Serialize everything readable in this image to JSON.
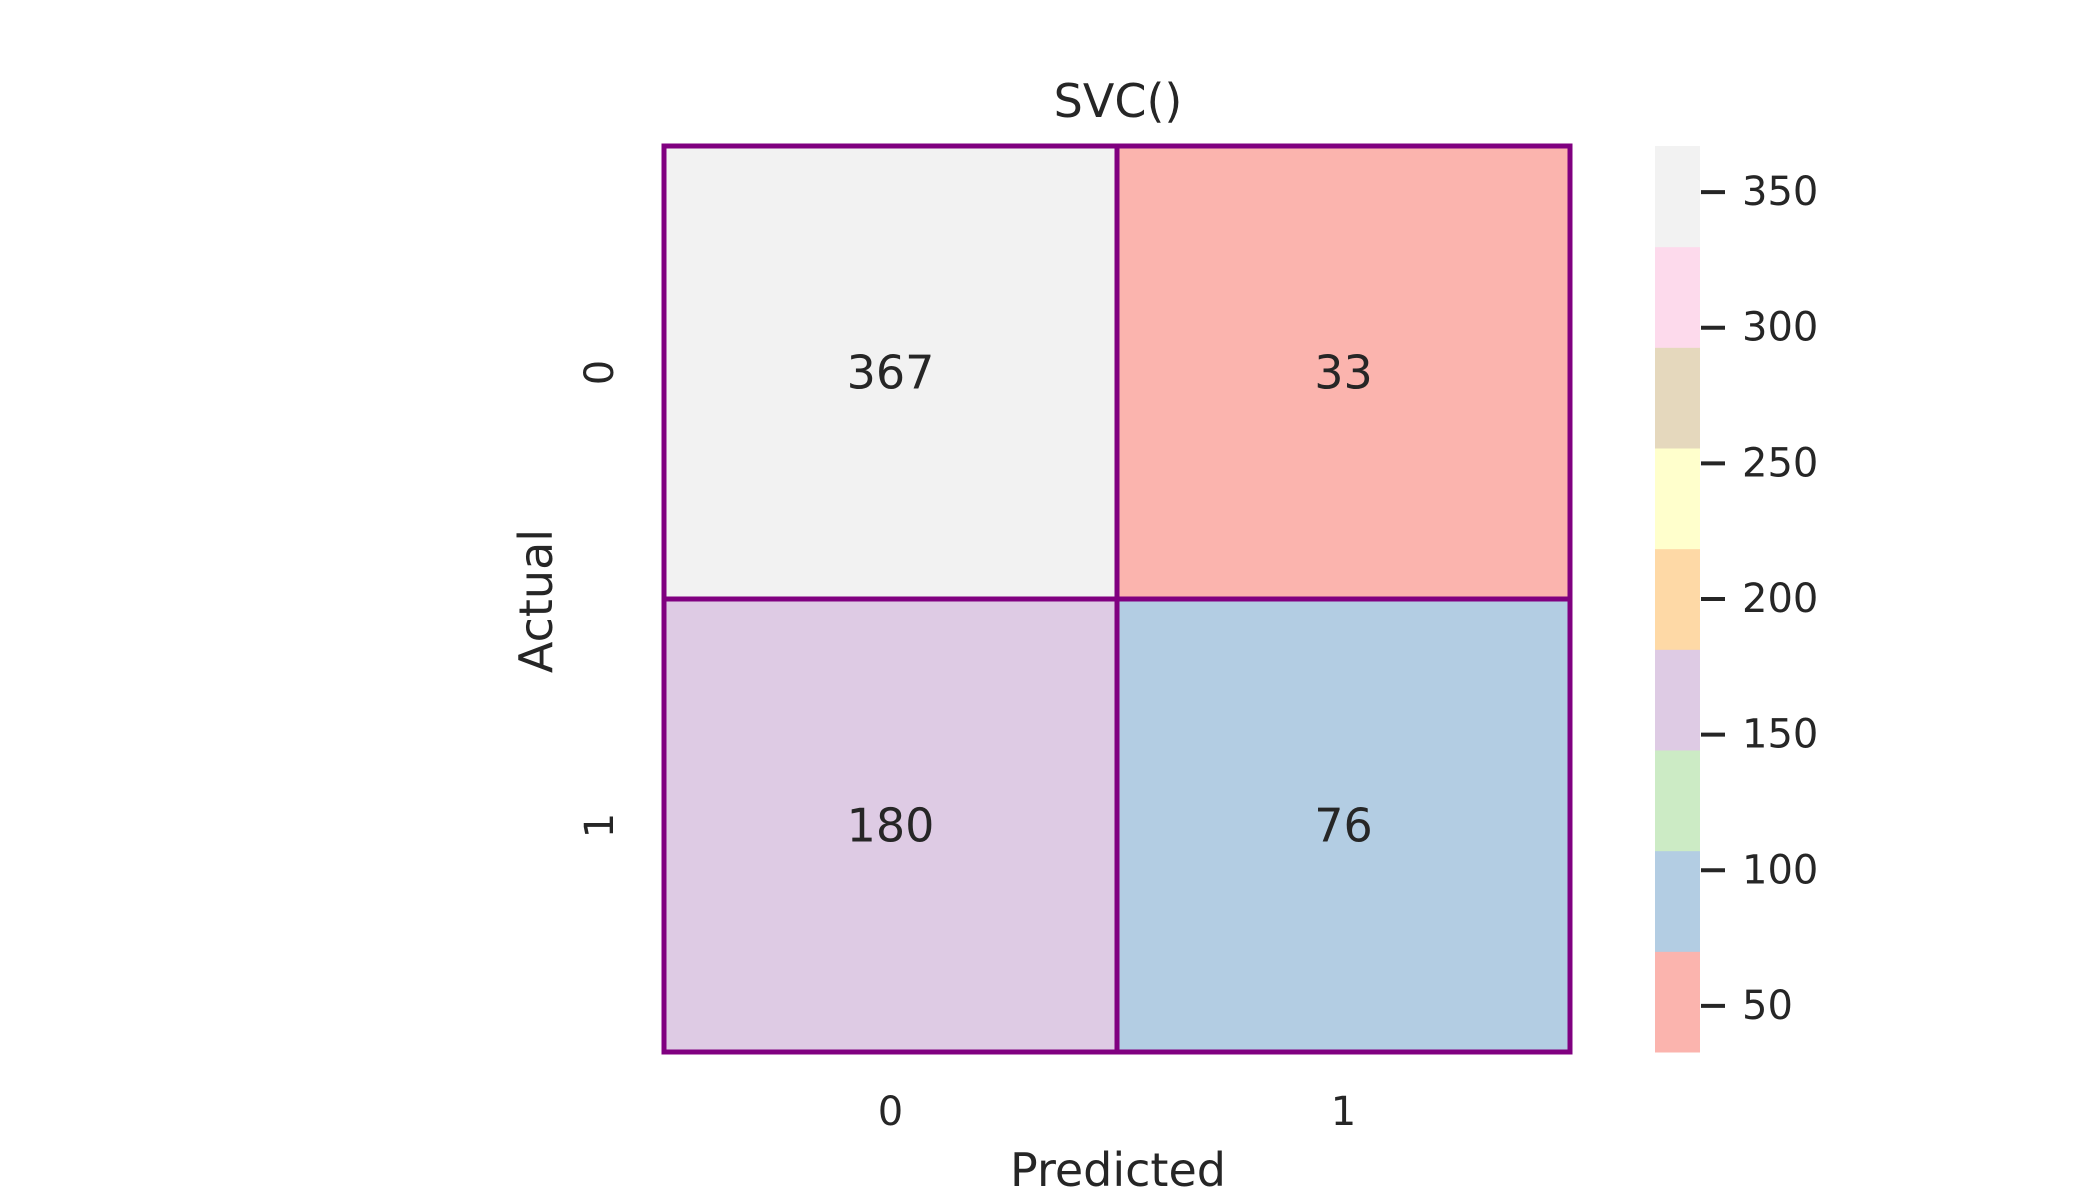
{
  "chart_data": {
    "type": "heatmap",
    "title": "SVC()",
    "xlabel": "Predicted",
    "ylabel": "Actual",
    "x_categories": [
      "0",
      "1"
    ],
    "y_categories": [
      "0",
      "1"
    ],
    "values": [
      [
        367,
        33
      ],
      [
        180,
        76
      ]
    ],
    "cell_border_color": "#800080",
    "colormap": "Pastel1",
    "colorbar": {
      "range": [
        33,
        367
      ],
      "ticks": [
        50,
        100,
        150,
        200,
        250,
        300,
        350
      ],
      "colors": [
        "#fbb4ae",
        "#b3cde3",
        "#ccebc5",
        "#decbe4",
        "#fed9a6",
        "#ffffcc",
        "#e5d8bd",
        "#fddaec",
        "#f2f2f2"
      ]
    }
  }
}
